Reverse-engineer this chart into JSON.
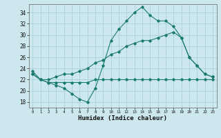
{
  "xlabel": "Humidex (Indice chaleur)",
  "bg_color": "#cce8ee",
  "grid_color": "#aacfd8",
  "line_color": "#1a7a6e",
  "xlim": [
    -0.5,
    23.5
  ],
  "ylim": [
    17.0,
    35.5
  ],
  "yticks": [
    18,
    20,
    22,
    24,
    26,
    28,
    30,
    32,
    34
  ],
  "xticks": [
    0,
    1,
    2,
    3,
    4,
    5,
    6,
    7,
    8,
    9,
    10,
    11,
    12,
    13,
    14,
    15,
    16,
    17,
    18,
    19,
    20,
    21,
    22,
    23
  ],
  "line1_y": [
    23.5,
    22,
    21.5,
    21,
    20.5,
    19.5,
    18.5,
    18,
    20.5,
    24.5,
    29,
    31,
    32.5,
    34,
    35,
    33.5,
    32.5,
    32.5,
    31.5,
    29.5,
    26,
    24.5,
    23,
    22.5
  ],
  "line2_y": [
    23,
    22,
    21.5,
    21.5,
    21.5,
    21.5,
    21.5,
    21.5,
    22,
    22,
    22,
    22,
    22,
    22,
    22,
    22,
    22,
    22,
    22,
    22,
    22,
    22,
    22,
    22
  ],
  "line3_y": [
    23,
    22,
    22,
    22.5,
    23,
    23,
    23.5,
    24,
    25,
    25.5,
    26.5,
    27,
    28,
    28.5,
    29,
    29,
    29.5,
    30,
    30.5,
    29.5,
    26,
    24.5,
    23,
    22.5
  ]
}
